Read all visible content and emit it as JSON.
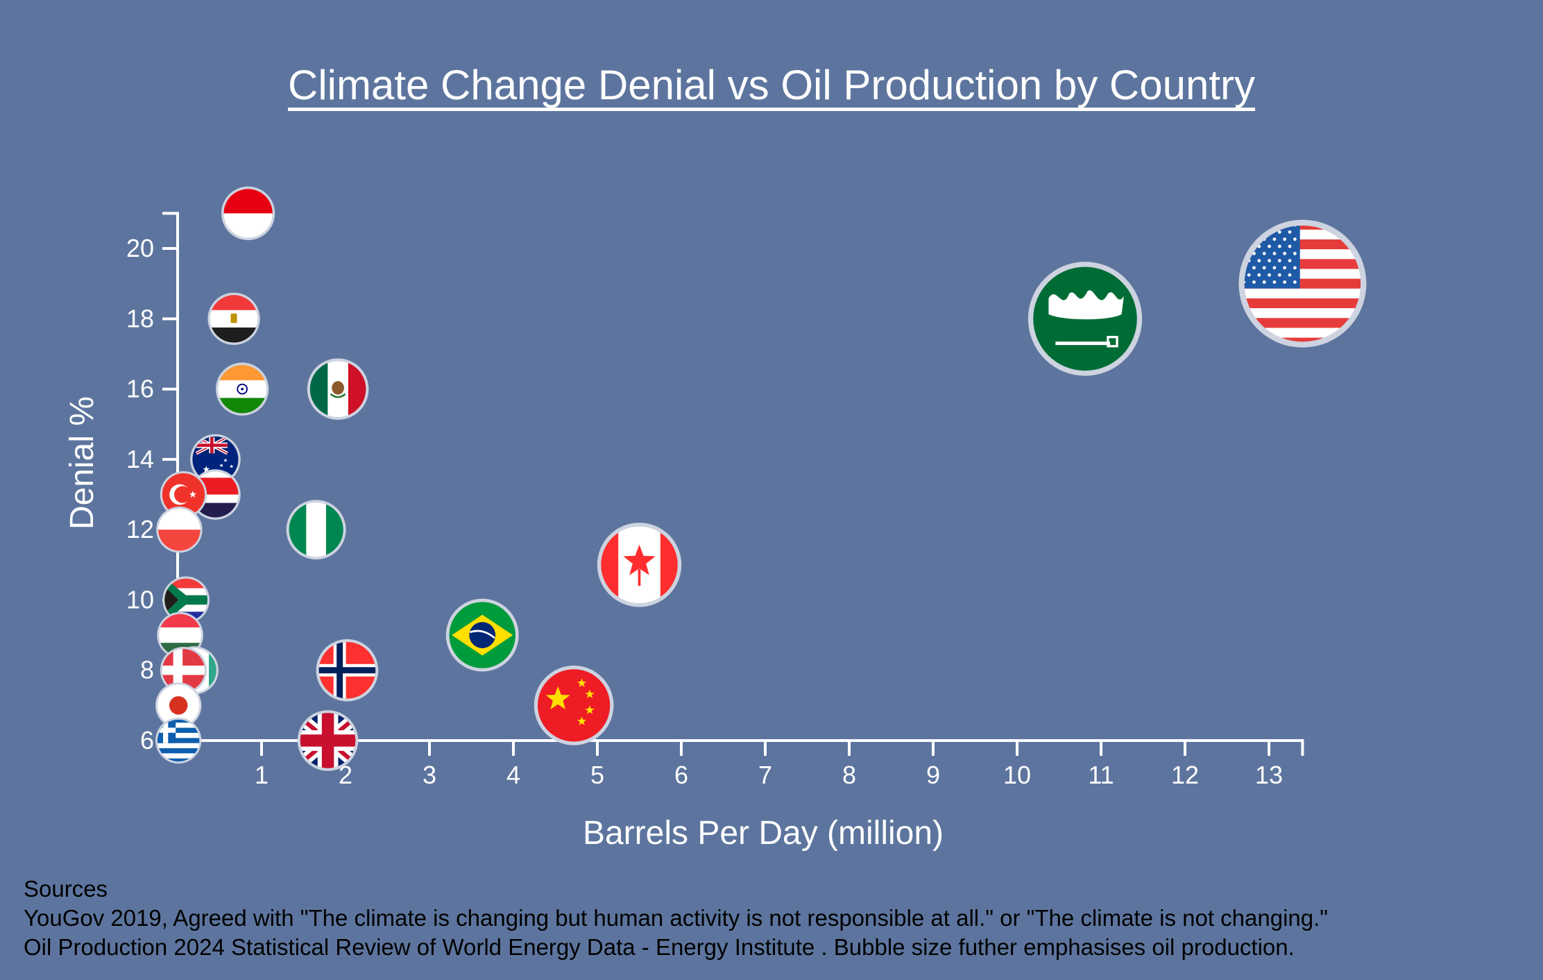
{
  "title": "Climate Change Denial vs Oil Production by Country",
  "colors": {
    "background": "#5d759e",
    "axis": "#ffffff",
    "bubble_border": "#cdd3e0",
    "text": "#ffffff",
    "sources_text": "#000000"
  },
  "sources": {
    "heading": "Sources",
    "line1": "YouGov 2019, Agreed with \"The climate is changing but human activity is not responsible at all.\" or \"The climate is not changing.\"",
    "line2": "Oil Production 2024 Statistical Review of World Energy Data - Energy Institute . Bubble size futher emphasises oil production."
  },
  "chart_data": {
    "type": "scatter",
    "title": "Climate Change Denial vs Oil Production by Country",
    "xlabel": "Barrels Per Day (million)",
    "ylabel": "Denial %",
    "xlim": [
      0,
      13.4
    ],
    "ylim": [
      6,
      21
    ],
    "x_ticks": [
      1,
      2,
      3,
      4,
      5,
      6,
      7,
      8,
      9,
      10,
      11,
      12,
      13
    ],
    "y_ticks": [
      6,
      8,
      10,
      12,
      14,
      16,
      18,
      20
    ],
    "grid": false,
    "legend": "none",
    "marker": "country-flag bubbles, size scales with oil production",
    "points": [
      {
        "country": "Indonesia",
        "flag": "indonesia-flag",
        "x": 0.84,
        "y": 21
      },
      {
        "country": "Egypt",
        "flag": "egypt-flag",
        "x": 0.67,
        "y": 18
      },
      {
        "country": "India",
        "flag": "india-flag",
        "x": 0.77,
        "y": 16
      },
      {
        "country": "Mexico",
        "flag": "mexico-flag",
        "x": 1.91,
        "y": 16
      },
      {
        "country": "Australia",
        "flag": "australia-flag",
        "x": 0.45,
        "y": 14
      },
      {
        "country": "Thailand",
        "flag": "thailand-flag",
        "x": 0.45,
        "y": 13
      },
      {
        "country": "Turkey",
        "flag": "turkey-flag",
        "x": 0.07,
        "y": 13
      },
      {
        "country": "Poland",
        "flag": "poland-flag",
        "x": 0.02,
        "y": 12
      },
      {
        "country": "Nigeria",
        "flag": "nigeria-flag",
        "x": 1.65,
        "y": 12
      },
      {
        "country": "Canada",
        "flag": "canada-flag",
        "x": 5.5,
        "y": 11
      },
      {
        "country": "South Africa",
        "flag": "south-africa-flag",
        "x": 0.1,
        "y": 10
      },
      {
        "country": "Hungary",
        "flag": "hungary-flag",
        "x": 0.03,
        "y": 9
      },
      {
        "country": "Brazil",
        "flag": "brazil-flag",
        "x": 3.63,
        "y": 9
      },
      {
        "country": "Unidentified (hidden)",
        "flag": "hidden-flag",
        "x": 0.2,
        "y": 8
      },
      {
        "country": "Denmark",
        "flag": "denmark-flag",
        "x": 0.07,
        "y": 8
      },
      {
        "country": "Norway",
        "flag": "norway-flag",
        "x": 2.02,
        "y": 8
      },
      {
        "country": "Japan",
        "flag": "japan-flag",
        "x": 0.01,
        "y": 7
      },
      {
        "country": "China",
        "flag": "china-flag",
        "x": 4.72,
        "y": 7
      },
      {
        "country": "Greece",
        "flag": "greece-flag",
        "x": 0.01,
        "y": 6
      },
      {
        "country": "United Kingdom",
        "flag": "uk-flag",
        "x": 1.79,
        "y": 6
      },
      {
        "country": "Saudi Arabia",
        "flag": "saudi-arabia-flag",
        "x": 10.81,
        "y": 18
      },
      {
        "country": "United States",
        "flag": "usa-flag",
        "x": 13.4,
        "y": 19
      }
    ]
  }
}
